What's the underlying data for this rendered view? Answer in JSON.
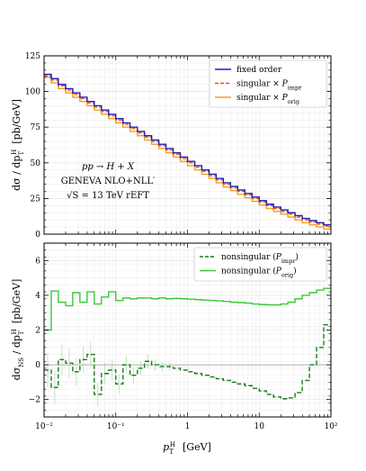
{
  "chart_data": [
    {
      "type": "line",
      "panel": "top",
      "title": "",
      "xlabel": "",
      "ylabel": "dσ / dp_T^H  [pb/GeV]",
      "ylabel_parts": {
        "main": "dσ / dp",
        "sub": "T",
        "sup": "H",
        "unit": "[pb/GeV]"
      },
      "xscale": "log",
      "xlim": [
        0.01,
        100
      ],
      "ylim": [
        0,
        125
      ],
      "yticks": [
        0,
        25,
        50,
        75,
        100,
        125
      ],
      "ytick_labels": [
        "0",
        "25",
        "50",
        "75",
        "100",
        "125"
      ],
      "grid": true,
      "legend_position": "top-right",
      "annotations": [
        "pp → H + X",
        "GENEVA NLO+NLL′",
        "√S = 13 TeV   rEFT"
      ],
      "edges": [
        0.01,
        0.0126,
        0.0158,
        0.02,
        0.0251,
        0.0316,
        0.0398,
        0.0501,
        0.0631,
        0.0794,
        0.1,
        0.126,
        0.158,
        0.2,
        0.251,
        0.316,
        0.398,
        0.501,
        0.631,
        0.794,
        1,
        1.26,
        1.58,
        2,
        2.51,
        3.16,
        3.98,
        5.01,
        6.31,
        7.94,
        10,
        12.6,
        15.8,
        20,
        25.1,
        31.6,
        39.8,
        50.1,
        63.1,
        79.4,
        100
      ],
      "series": [
        {
          "name": "fixed order",
          "color": "#1f1fb4",
          "dash": "solid",
          "values": [
            112,
            109,
            105,
            102,
            99,
            96,
            93,
            90,
            87,
            84,
            81,
            78,
            75,
            72,
            69,
            66,
            63,
            60,
            57,
            54,
            51,
            48,
            45,
            42,
            39,
            36,
            33.5,
            31,
            28.5,
            26,
            23.5,
            21,
            19,
            17,
            15,
            13,
            11,
            9.5,
            8,
            6.5
          ]
        },
        {
          "name": "singular × P_impr",
          "color": "#e8551e",
          "dash": "dashed",
          "values": [
            111,
            108,
            104,
            101,
            98,
            95,
            92,
            89,
            86,
            83,
            80,
            77,
            74,
            71,
            68,
            65,
            62,
            59,
            56,
            53,
            50,
            47,
            44,
            41,
            38,
            35,
            32.5,
            30,
            27.5,
            25,
            22.5,
            20,
            18,
            16,
            14,
            12,
            10,
            8.5,
            7,
            5.5
          ]
        },
        {
          "name": "singular × P_orig",
          "color": "#f0a020",
          "dash": "solid",
          "values": [
            110,
            106,
            102,
            99,
            96,
            93,
            90,
            87,
            84,
            81,
            78,
            75,
            72,
            69,
            66,
            63,
            60,
            57,
            54,
            51,
            48,
            45,
            42,
            39,
            36,
            33,
            30.5,
            28,
            25.5,
            23,
            20.5,
            18,
            16,
            14,
            12,
            10,
            8,
            6.5,
            5,
            3.5
          ]
        }
      ]
    },
    {
      "type": "line",
      "panel": "bottom",
      "title": "",
      "xlabel": "p_T^H  [GeV]",
      "xlabel_parts": {
        "main": "p",
        "sub": "T",
        "sup": "H",
        "unit": "[GeV]"
      },
      "ylabel": "dσ_NS / dp_T^H  [pb/GeV]",
      "ylabel_parts": {
        "main": "dσ",
        "sub1": "NS",
        "mid": " / dp",
        "sub": "T",
        "sup": "H",
        "unit": "[pb/GeV]"
      },
      "xscale": "log",
      "xlim": [
        0.01,
        100
      ],
      "ylim": [
        -3,
        7
      ],
      "yticks": [
        -2,
        0,
        2,
        4,
        6
      ],
      "ytick_labels": [
        "−2",
        "0",
        "2",
        "4",
        "6"
      ],
      "xticks": [
        0.01,
        0.1,
        1,
        10,
        100
      ],
      "xtick_labels": [
        "10⁻²",
        "10⁻¹",
        "1",
        "10",
        "10²"
      ],
      "grid": true,
      "legend_position": "top-right",
      "series": [
        {
          "name": "nonsingular (P_impr)",
          "color": "#1a7a1a",
          "dash": "dashed",
          "values": [
            -0.3,
            -1.3,
            0.3,
            0.1,
            -0.4,
            0.3,
            0.6,
            -1.7,
            -0.5,
            -0.3,
            -1.1,
            0.0,
            -0.6,
            -0.2,
            0.2,
            0.0,
            -0.1,
            -0.1,
            -0.2,
            -0.3,
            -0.4,
            -0.5,
            -0.6,
            -0.7,
            -0.8,
            -0.9,
            -1.0,
            -1.1,
            -1.2,
            -1.35,
            -1.5,
            -1.7,
            -1.85,
            -1.95,
            -1.9,
            -1.6,
            -0.9,
            0.0,
            1.0,
            2.3
          ]
        },
        {
          "name": "nonsingular (P_orig)",
          "color": "#3cc83c",
          "dash": "solid",
          "values": [
            2.0,
            4.25,
            3.6,
            3.4,
            4.15,
            3.6,
            4.2,
            3.5,
            3.9,
            4.2,
            3.7,
            3.85,
            3.8,
            3.85,
            3.85,
            3.8,
            3.85,
            3.8,
            3.82,
            3.8,
            3.78,
            3.75,
            3.72,
            3.7,
            3.68,
            3.65,
            3.6,
            3.58,
            3.55,
            3.5,
            3.47,
            3.45,
            3.45,
            3.5,
            3.6,
            3.8,
            4.0,
            4.15,
            4.3,
            4.4
          ]
        }
      ]
    }
  ]
}
